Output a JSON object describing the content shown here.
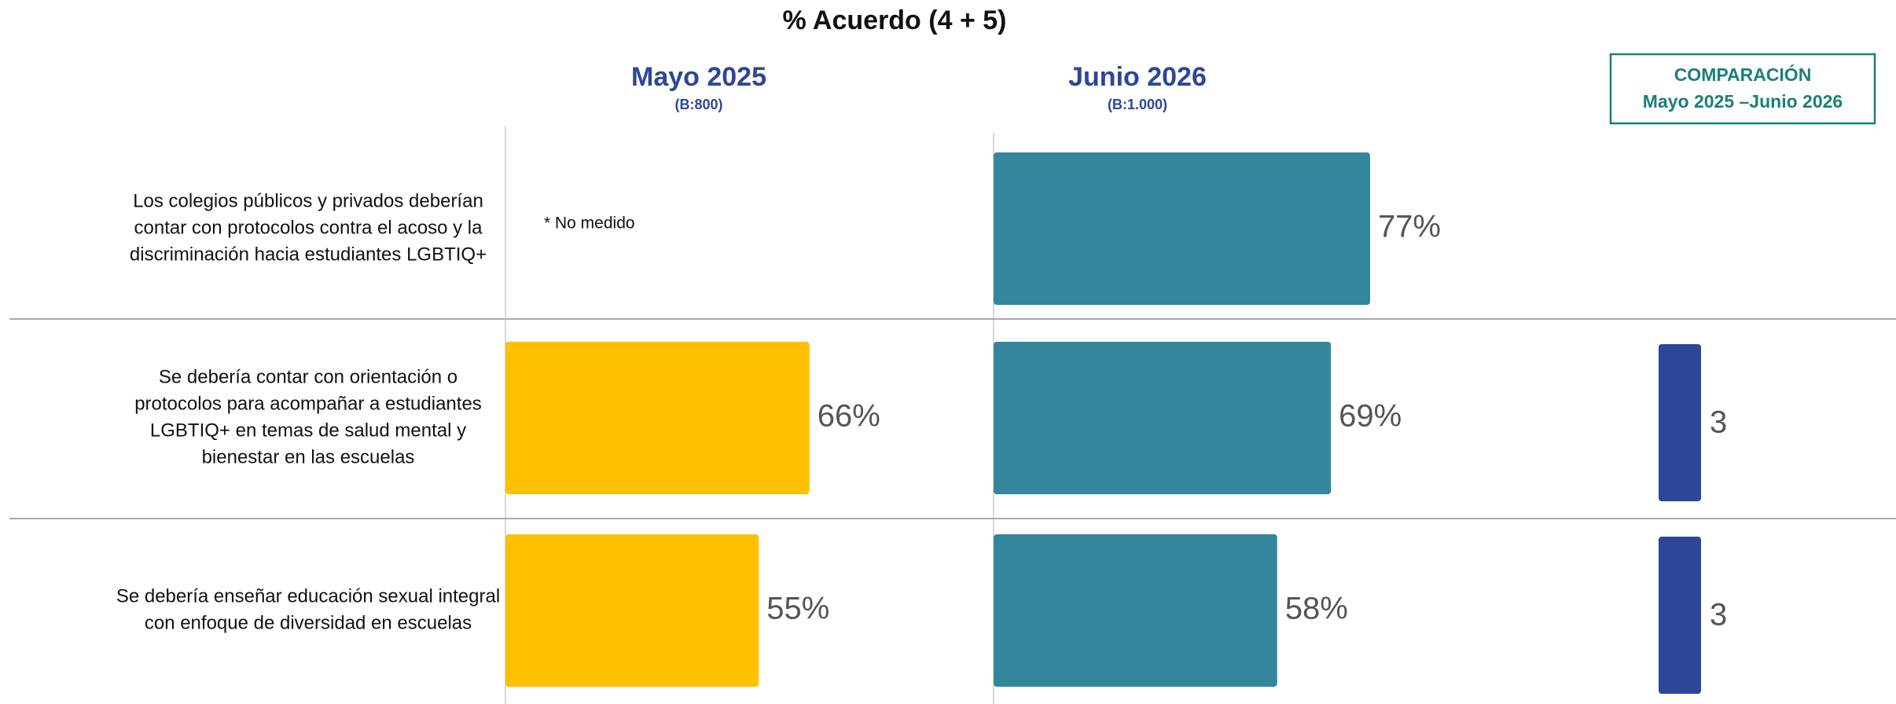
{
  "chart_data": {
    "type": "bar",
    "title": "% Acuerdo (4 + 5)",
    "categories": [
      [
        "Los colegios públicos y privados deberían",
        "contar con protocolos contra el acoso y la",
        "discriminación hacia estudiantes LGBTIQ+"
      ],
      [
        "Se debería contar con orientación o",
        "protocolos para acompañar a estudiantes",
        "LGBTIQ+ en temas de salud mental y",
        "bienestar en las escuelas"
      ],
      [
        "Se debería enseñar educación sexual integral",
        "con enfoque de diversidad en escuelas"
      ]
    ],
    "series": [
      {
        "name": "Mayo 2025",
        "subtitle": "(B:800)",
        "color": "#FFC000",
        "values": [
          null,
          66,
          55
        ],
        "value_labels": [
          null,
          "66%",
          "55%"
        ]
      },
      {
        "name": "Junio 2026",
        "subtitle": "(B:1.000)",
        "color": "#33869C",
        "values": [
          77,
          69,
          58
        ],
        "value_labels": [
          "77%",
          "69%",
          "58%"
        ]
      }
    ],
    "comparison": {
      "title": [
        "COMPARACIÓN",
        "Mayo 2025 –Junio 2026"
      ],
      "color": "#2E4699",
      "values": [
        null,
        3,
        3
      ]
    },
    "annotation": "* No medido"
  }
}
